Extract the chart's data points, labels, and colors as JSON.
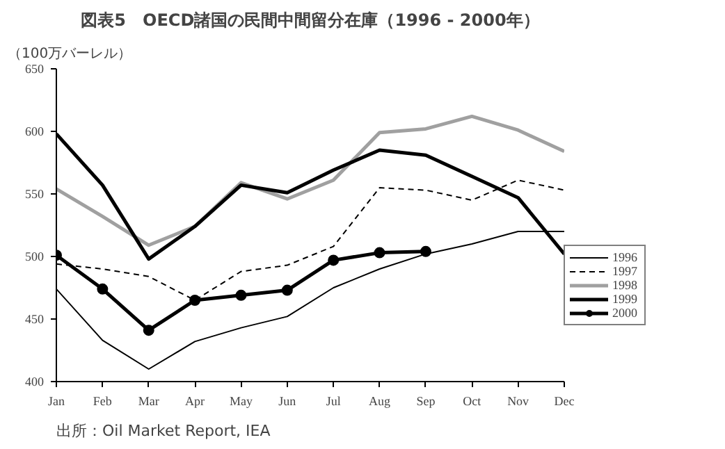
{
  "chart_data": {
    "type": "line",
    "title": "図表5　OECD諸国の民間中間留分在庫（1996 - 2000年）",
    "ylabel": "（100万バーレル）",
    "categories": [
      "Jan",
      "Feb",
      "Mar",
      "Apr",
      "May",
      "Jun",
      "Jul",
      "Aug",
      "Sep",
      "Oct",
      "Nov",
      "Dec"
    ],
    "series": [
      {
        "name": "1996",
        "color": "#000000",
        "line_style": "solid",
        "marker": "none",
        "values": [
          474,
          433,
          410,
          432,
          443,
          452,
          475,
          490,
          502,
          510,
          520,
          520
        ]
      },
      {
        "name": "1997",
        "color": "#000000",
        "line_style": "dashed",
        "marker": "none",
        "values": [
          494,
          490,
          484,
          465,
          488,
          493,
          508,
          555,
          553,
          545,
          561,
          553
        ]
      },
      {
        "name": "1998",
        "color": "#a0a0a0",
        "line_style": "solid",
        "marker": "none",
        "values": [
          554,
          532,
          509,
          524,
          559,
          546,
          561,
          599,
          602,
          612,
          601,
          584
        ]
      },
      {
        "name": "1999",
        "color": "#000000",
        "line_style": "solid",
        "marker": "none",
        "values": [
          598,
          557,
          498,
          524,
          557,
          551,
          569,
          585,
          581,
          564,
          547,
          502
        ]
      },
      {
        "name": "2000",
        "color": "#000000",
        "line_style": "solid",
        "marker": "circle",
        "values": [
          501,
          474,
          441,
          465,
          469,
          473,
          497,
          503,
          504,
          null,
          null,
          null
        ]
      }
    ],
    "ylim": [
      400,
      650
    ],
    "yticks": [
      400,
      450,
      500,
      550,
      600,
      650
    ],
    "grid": false,
    "legend": "right",
    "annotations": [
      "出所：Oil Market Report, IEA"
    ]
  }
}
